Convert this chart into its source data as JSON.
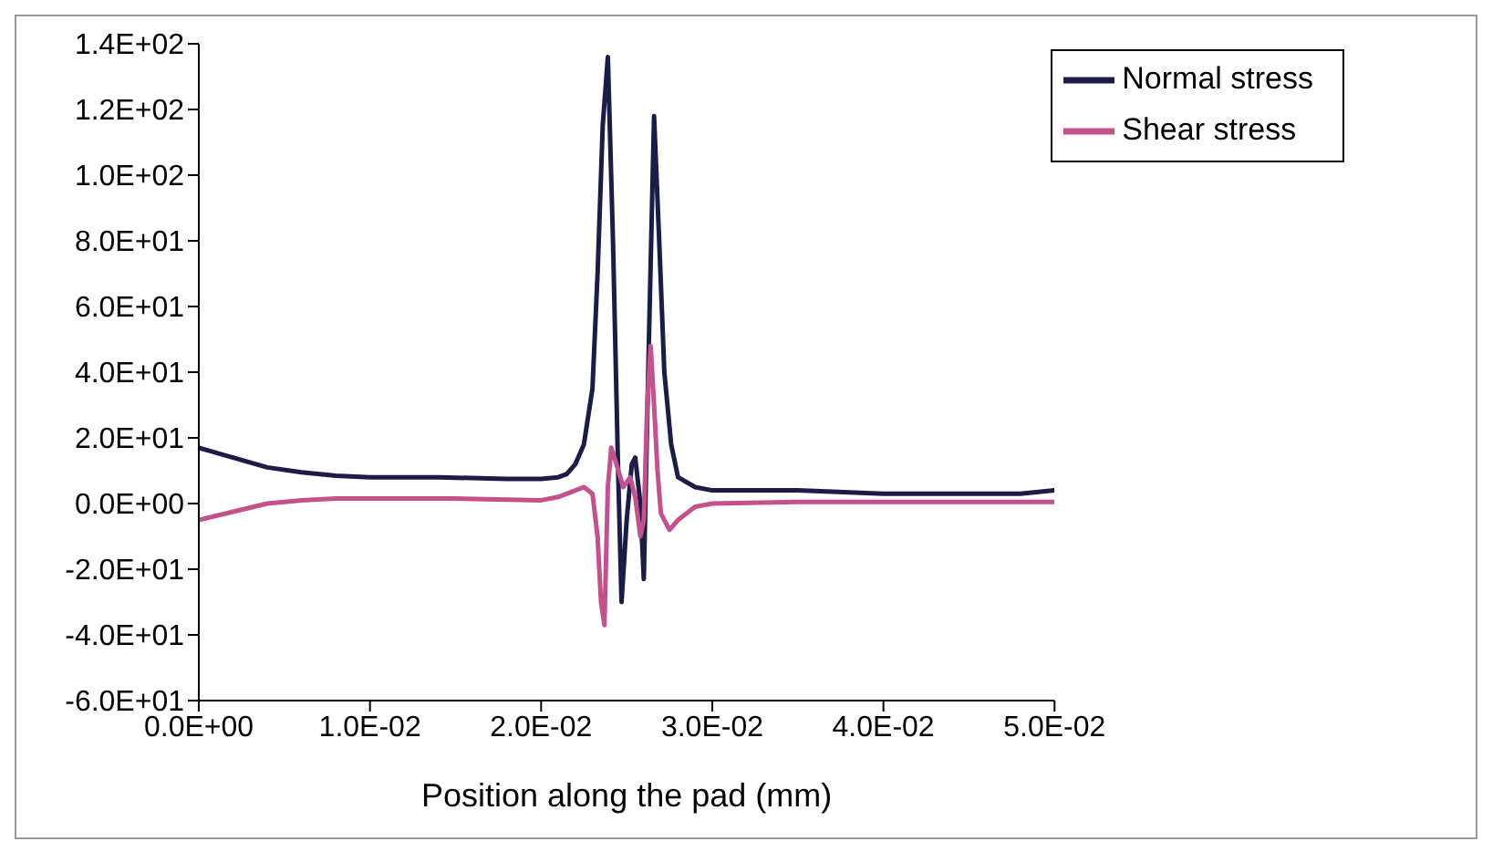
{
  "chart_data": {
    "type": "line",
    "xlabel": "Position along the pad (mm)",
    "xlim": [
      0,
      0.05
    ],
    "xticks": [
      {
        "value": 0,
        "label": "0.0E+00"
      },
      {
        "value": 0.01,
        "label": "1.0E-02"
      },
      {
        "value": 0.02,
        "label": "2.0E-02"
      },
      {
        "value": 0.03,
        "label": "3.0E-02"
      },
      {
        "value": 0.04,
        "label": "4.0E-02"
      },
      {
        "value": 0.05,
        "label": "5.0E-02"
      }
    ],
    "ylim": [
      -60,
      140
    ],
    "yticks": [
      {
        "value": -60,
        "label": "-6.0E+01"
      },
      {
        "value": -40,
        "label": "-4.0E+01"
      },
      {
        "value": -20,
        "label": "-2.0E+01"
      },
      {
        "value": 0,
        "label": "0.0E+00"
      },
      {
        "value": 20,
        "label": "2.0E+01"
      },
      {
        "value": 40,
        "label": "4.0E+01"
      },
      {
        "value": 60,
        "label": "6.0E+01"
      },
      {
        "value": 80,
        "label": "8.0E+01"
      },
      {
        "value": 100,
        "label": "1.0E+02"
      },
      {
        "value": 120,
        "label": "1.2E+02"
      },
      {
        "value": 140,
        "label": "1.4E+02"
      }
    ],
    "legend": "top right",
    "marker": "none",
    "line_style": "solid",
    "series": [
      {
        "name": "Normal stress",
        "color": "#1c1c48",
        "x": [
          0,
          0.002,
          0.004,
          0.006,
          0.008,
          0.01,
          0.014,
          0.018,
          0.02,
          0.021,
          0.0215,
          0.022,
          0.0225,
          0.023,
          0.0233,
          0.0236,
          0.0239,
          0.0242,
          0.0245,
          0.0247,
          0.025,
          0.0253,
          0.0255,
          0.0258,
          0.026,
          0.0263,
          0.0266,
          0.0269,
          0.0272,
          0.0276,
          0.028,
          0.029,
          0.03,
          0.035,
          0.04,
          0.045,
          0.048,
          0.05
        ],
        "values": [
          17,
          14,
          11,
          9.5,
          8.5,
          8,
          8,
          7.5,
          7.5,
          8,
          9,
          12,
          18,
          35,
          70,
          115,
          136,
          80,
          10,
          -30,
          -5,
          12,
          14,
          0,
          -23,
          50,
          118,
          80,
          40,
          18,
          8,
          5,
          4,
          4,
          3,
          3,
          3,
          4
        ]
      },
      {
        "name": "Shear stress",
        "color": "#c4508c",
        "x": [
          0,
          0.002,
          0.004,
          0.006,
          0.008,
          0.01,
          0.015,
          0.02,
          0.021,
          0.022,
          0.0225,
          0.023,
          0.0233,
          0.0235,
          0.0237,
          0.0239,
          0.0241,
          0.0244,
          0.0248,
          0.0252,
          0.0255,
          0.0258,
          0.026,
          0.0262,
          0.0264,
          0.0266,
          0.0268,
          0.027,
          0.0275,
          0.028,
          0.029,
          0.03,
          0.035,
          0.04,
          0.045,
          0.05
        ],
        "values": [
          -5,
          -2.5,
          0,
          1,
          1.5,
          1.5,
          1.5,
          1,
          2,
          4,
          5,
          3,
          -10,
          -30,
          -37,
          5,
          17,
          12,
          5,
          8,
          2,
          -10,
          -5,
          30,
          48,
          30,
          10,
          -3,
          -8,
          -5,
          -1,
          0,
          0.5,
          0.5,
          0.5,
          0.5
        ]
      }
    ]
  }
}
